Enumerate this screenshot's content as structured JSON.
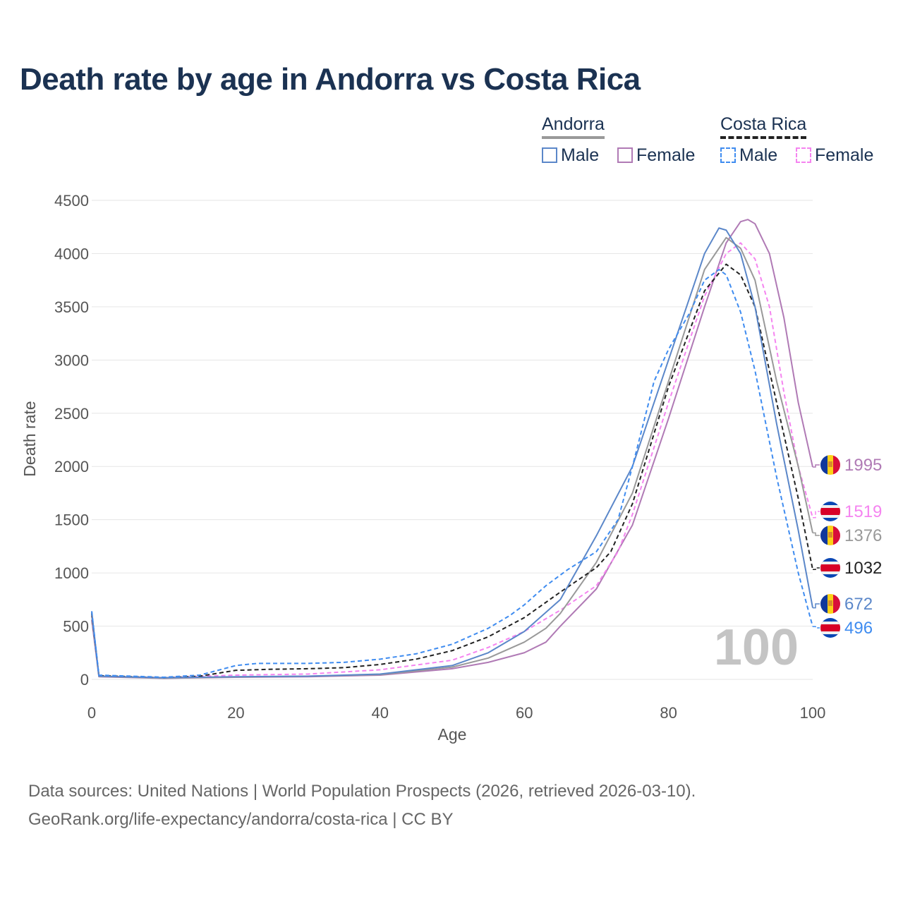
{
  "chart_data": {
    "type": "line",
    "title": "Death rate by age in Andorra vs Costa Rica",
    "xlabel": "Age",
    "ylabel": "Death rate",
    "xlim": [
      0,
      100
    ],
    "ylim": [
      0,
      4500
    ],
    "xticks": [
      "0",
      "20",
      "40",
      "60",
      "80",
      "100"
    ],
    "yticks": [
      "0",
      "500",
      "1000",
      "1500",
      "2000",
      "2500",
      "3000",
      "3500",
      "4000",
      "4500"
    ],
    "grid": true,
    "watermark": "100",
    "legend": {
      "groups": [
        {
          "name": "Andorra",
          "items": [
            "Male",
            "Female"
          ]
        },
        {
          "name": "Costa Rica",
          "items": [
            "Male",
            "Female"
          ]
        }
      ],
      "placement": "top-right"
    },
    "series": [
      {
        "name": "Andorra Female",
        "country": "Andorra",
        "color": "#b07ab5",
        "dash": false,
        "end_label": "1995",
        "x": [
          0,
          1,
          10,
          20,
          30,
          40,
          50,
          55,
          60,
          63,
          65,
          70,
          75,
          80,
          85,
          88,
          90,
          91,
          92,
          94,
          96,
          98,
          100
        ],
        "y": [
          560,
          25,
          10,
          20,
          25,
          40,
          100,
          160,
          250,
          350,
          500,
          850,
          1450,
          2450,
          3500,
          4100,
          4300,
          4320,
          4280,
          4000,
          3400,
          2600,
          1995
        ]
      },
      {
        "name": "Costa Rica Female",
        "country": "Costa Rica",
        "color": "#f584f0",
        "dash": true,
        "end_label": "1519",
        "x": [
          0,
          1,
          10,
          20,
          30,
          40,
          50,
          55,
          60,
          65,
          70,
          73,
          75,
          80,
          85,
          88,
          90,
          92,
          94,
          96,
          98,
          100
        ],
        "y": [
          600,
          30,
          15,
          40,
          50,
          90,
          180,
          300,
          450,
          650,
          880,
          1200,
          1550,
          2600,
          3600,
          4000,
          4100,
          3950,
          3500,
          2700,
          2000,
          1519
        ]
      },
      {
        "name": "Andorra",
        "country": "Andorra",
        "color": "#999999",
        "dash": false,
        "end_label": "1376",
        "x": [
          0,
          1,
          10,
          20,
          30,
          40,
          50,
          55,
          60,
          63,
          65,
          70,
          75,
          80,
          85,
          88,
          90,
          92,
          95,
          98,
          100
        ],
        "y": [
          600,
          28,
          12,
          22,
          30,
          45,
          115,
          200,
          350,
          480,
          620,
          1100,
          1750,
          2800,
          3850,
          4150,
          4050,
          3750,
          2800,
          2000,
          1376
        ]
      },
      {
        "name": "Costa Rica",
        "country": "Costa Rica",
        "color": "#222222",
        "dash": true,
        "end_label": "1032",
        "x": [
          0,
          1,
          10,
          15,
          20,
          25,
          30,
          35,
          40,
          45,
          50,
          55,
          60,
          65,
          70,
          72,
          75,
          80,
          85,
          88,
          90,
          92,
          95,
          98,
          100
        ],
        "y": [
          620,
          35,
          15,
          30,
          85,
          95,
          100,
          110,
          140,
          190,
          270,
          400,
          580,
          820,
          1050,
          1200,
          1650,
          2750,
          3650,
          3900,
          3800,
          3500,
          2600,
          1700,
          1032
        ]
      },
      {
        "name": "Andorra Male",
        "country": "Andorra",
        "color": "#5b87c9",
        "dash": false,
        "end_label": "672",
        "x": [
          0,
          1,
          10,
          20,
          30,
          40,
          50,
          55,
          60,
          65,
          70,
          75,
          80,
          83,
          85,
          87,
          88,
          90,
          92,
          95,
          98,
          100
        ],
        "y": [
          640,
          30,
          15,
          25,
          30,
          50,
          130,
          250,
          450,
          750,
          1350,
          2000,
          3000,
          3600,
          4000,
          4240,
          4220,
          4000,
          3500,
          2400,
          1400,
          672
        ]
      },
      {
        "name": "Costa Rica Male",
        "country": "Costa Rica",
        "color": "#3f8cf0",
        "dash": true,
        "end_label": "496",
        "x": [
          0,
          1,
          10,
          15,
          20,
          23,
          30,
          35,
          40,
          45,
          50,
          55,
          58,
          60,
          63,
          66,
          70,
          73,
          75,
          78,
          80,
          83,
          85,
          87,
          88,
          90,
          92,
          95,
          98,
          100
        ],
        "y": [
          640,
          40,
          20,
          40,
          130,
          150,
          150,
          160,
          190,
          240,
          330,
          480,
          600,
          700,
          880,
          1030,
          1200,
          1500,
          2000,
          2800,
          3100,
          3450,
          3750,
          3850,
          3800,
          3450,
          2900,
          1900,
          1000,
          496
        ]
      }
    ]
  },
  "footer": {
    "line1": "Data sources: United Nations | World Population Prospects (2026, retrieved 2026-03-10).",
    "line2": "GeoRank.org/life-expectancy/andorra/costa-rica | CC BY"
  }
}
